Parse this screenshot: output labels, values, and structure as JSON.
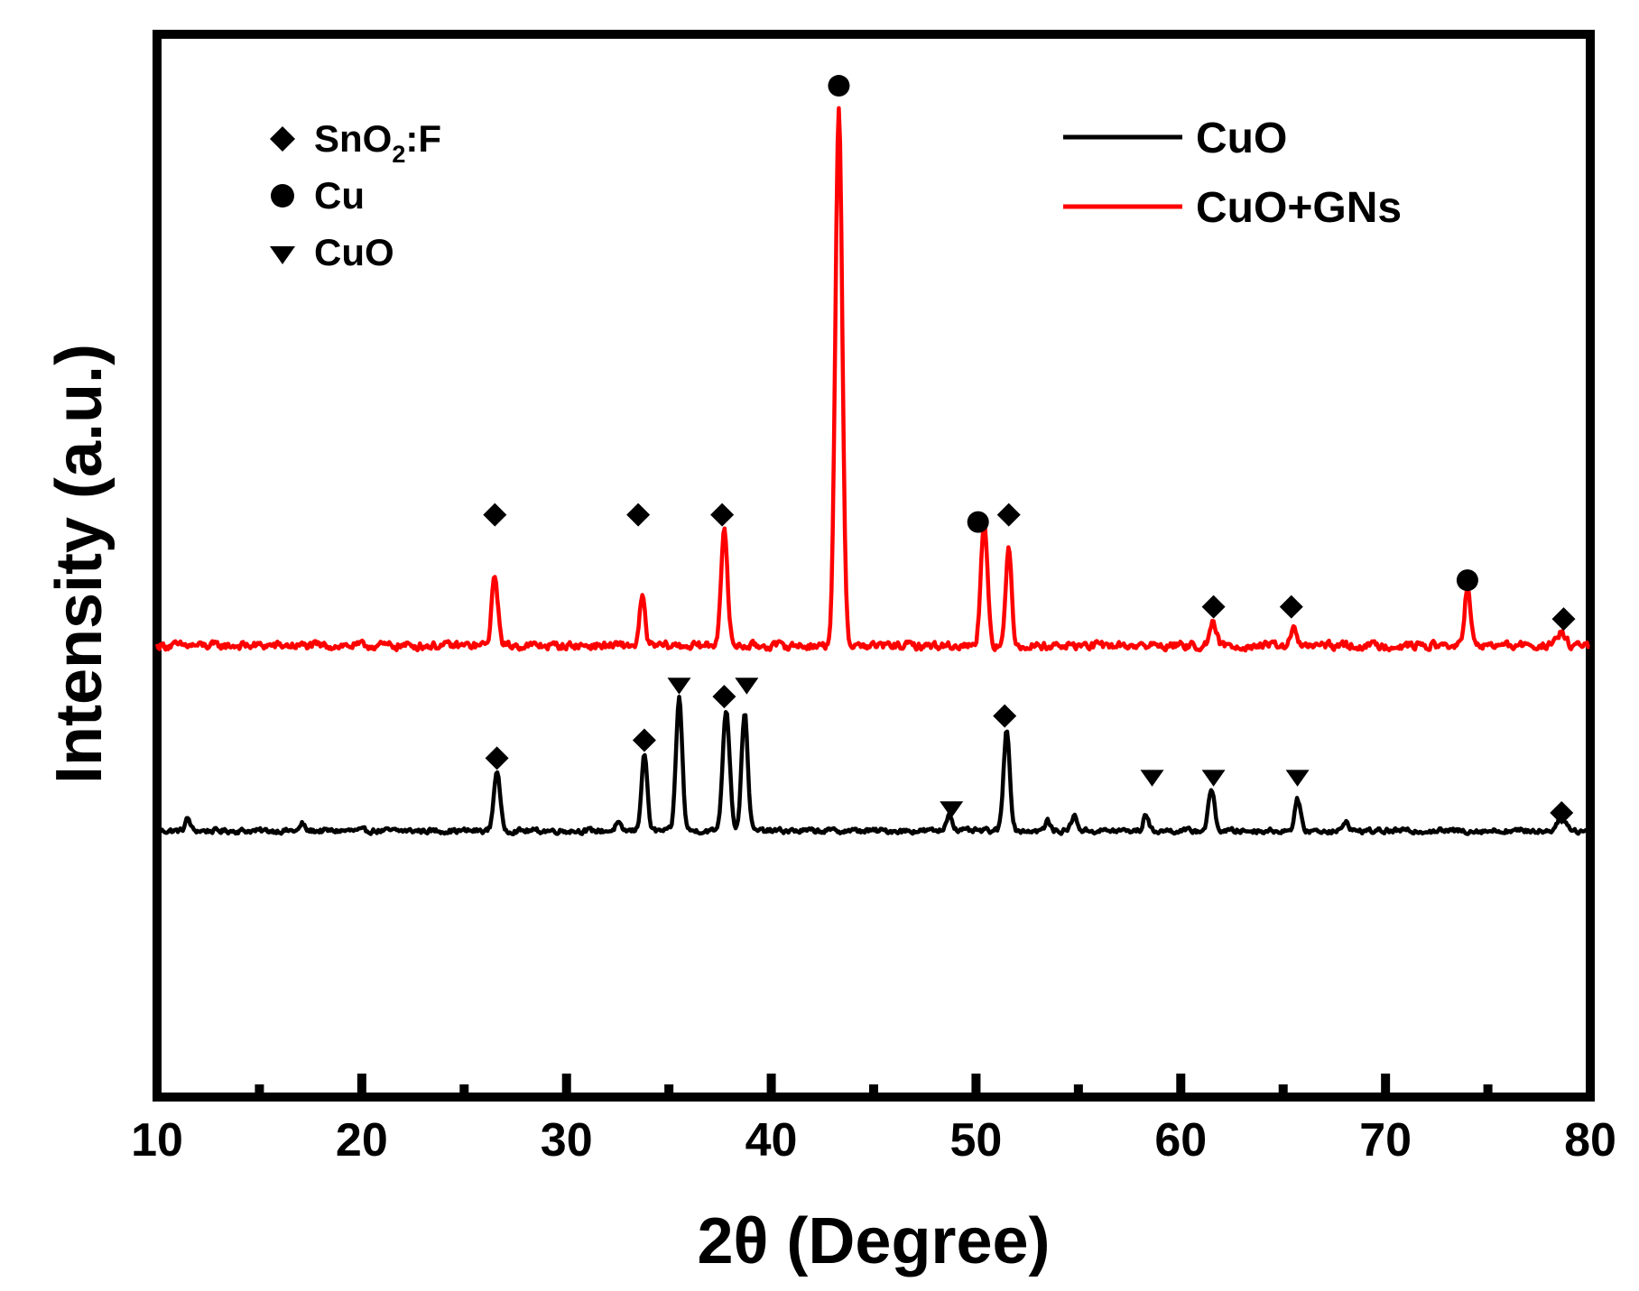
{
  "chart_data": {
    "type": "line",
    "xlabel": "2θ (Degree)",
    "ylabel": "Intensity (a.u.)",
    "xlim": [
      10,
      80
    ],
    "x_ticks": [
      10,
      20,
      30,
      40,
      50,
      60,
      70,
      80
    ],
    "x_minor_ticks": [
      15,
      25,
      35,
      45,
      55,
      65,
      75
    ],
    "y_ticks_shown": false,
    "grid": false,
    "legend_position": "top-right",
    "legend": [
      {
        "label": "CuO",
        "color": "#000000"
      },
      {
        "label": "CuO+GNs",
        "color": "#ff0000"
      }
    ],
    "marker_key": [
      {
        "symbol": "diamond",
        "label_main": "SnO",
        "label_sub": "2",
        "label_tail": ":F"
      },
      {
        "symbol": "circle",
        "label_main": "Cu",
        "label_sub": "",
        "label_tail": ""
      },
      {
        "symbol": "triangle-down",
        "label_main": "CuO",
        "label_sub": "",
        "label_tail": ""
      }
    ],
    "series": [
      {
        "name": "CuO",
        "color": "#000000",
        "baseline": 0.58,
        "noise": 0.045,
        "peaks": [
          {
            "x": 11.5,
            "h": 0.25,
            "w": 0.12
          },
          {
            "x": 17.1,
            "h": 0.15,
            "w": 0.1
          },
          {
            "x": 26.6,
            "h": 1.25,
            "w": 0.15
          },
          {
            "x": 32.5,
            "h": 0.15,
            "w": 0.12
          },
          {
            "x": 33.8,
            "h": 1.6,
            "w": 0.14
          },
          {
            "x": 35.5,
            "h": 2.75,
            "w": 0.15
          },
          {
            "x": 37.8,
            "h": 2.5,
            "w": 0.17
          },
          {
            "x": 38.7,
            "h": 2.45,
            "w": 0.15
          },
          {
            "x": 48.7,
            "h": 0.35,
            "w": 0.15
          },
          {
            "x": 51.5,
            "h": 2.1,
            "w": 0.15
          },
          {
            "x": 53.5,
            "h": 0.2,
            "w": 0.12
          },
          {
            "x": 54.8,
            "h": 0.3,
            "w": 0.15
          },
          {
            "x": 58.3,
            "h": 0.35,
            "w": 0.12
          },
          {
            "x": 61.5,
            "h": 0.85,
            "w": 0.15
          },
          {
            "x": 65.7,
            "h": 0.65,
            "w": 0.14
          },
          {
            "x": 68.1,
            "h": 0.2,
            "w": 0.12
          },
          {
            "x": 78.6,
            "h": 0.32,
            "w": 0.2
          }
        ],
        "phase_markers": [
          {
            "x": 26.6,
            "y": 2.08,
            "symbol": "diamond"
          },
          {
            "x": 33.8,
            "y": 2.45,
            "symbol": "diamond"
          },
          {
            "x": 35.5,
            "y": 3.6,
            "symbol": "triangle-down"
          },
          {
            "x": 37.7,
            "y": 3.35,
            "symbol": "diamond"
          },
          {
            "x": 38.8,
            "y": 3.6,
            "symbol": "triangle-down"
          },
          {
            "x": 48.8,
            "y": 1.05,
            "symbol": "triangle-down"
          },
          {
            "x": 51.4,
            "y": 2.95,
            "symbol": "diamond"
          },
          {
            "x": 58.6,
            "y": 1.7,
            "symbol": "triangle-down"
          },
          {
            "x": 61.6,
            "y": 1.7,
            "symbol": "triangle-down"
          },
          {
            "x": 65.7,
            "y": 1.7,
            "symbol": "triangle-down"
          },
          {
            "x": 78.6,
            "y": 0.95,
            "symbol": "diamond"
          }
        ]
      },
      {
        "name": "CuO+GNs",
        "color": "#ff0000",
        "baseline": 4.4,
        "noise": 0.07,
        "peaks": [
          {
            "x": 26.5,
            "h": 1.45,
            "w": 0.15
          },
          {
            "x": 33.7,
            "h": 1.0,
            "w": 0.13
          },
          {
            "x": 37.7,
            "h": 2.35,
            "w": 0.16
          },
          {
            "x": 43.3,
            "h": 11.0,
            "w": 0.17
          },
          {
            "x": 50.4,
            "h": 2.6,
            "w": 0.16
          },
          {
            "x": 51.6,
            "h": 2.0,
            "w": 0.14
          },
          {
            "x": 61.6,
            "h": 0.45,
            "w": 0.15
          },
          {
            "x": 65.5,
            "h": 0.35,
            "w": 0.13
          },
          {
            "x": 74.0,
            "h": 1.2,
            "w": 0.14
          },
          {
            "x": 78.6,
            "h": 0.25,
            "w": 0.2
          }
        ],
        "phase_markers": [
          {
            "x": 26.5,
            "y": 7.1,
            "symbol": "diamond"
          },
          {
            "x": 33.5,
            "y": 7.1,
            "symbol": "diamond"
          },
          {
            "x": 37.6,
            "y": 7.1,
            "symbol": "diamond"
          },
          {
            "x": 43.3,
            "y": 15.95,
            "symbol": "circle"
          },
          {
            "x": 50.1,
            "y": 6.95,
            "symbol": "circle"
          },
          {
            "x": 51.6,
            "y": 7.1,
            "symbol": "diamond"
          },
          {
            "x": 61.6,
            "y": 5.2,
            "symbol": "diamond"
          },
          {
            "x": 65.4,
            "y": 5.2,
            "symbol": "diamond"
          },
          {
            "x": 74.0,
            "y": 5.75,
            "symbol": "circle"
          },
          {
            "x": 78.7,
            "y": 4.95,
            "symbol": "diamond"
          }
        ]
      }
    ],
    "ylim": [
      -4.8,
      16.9
    ]
  }
}
